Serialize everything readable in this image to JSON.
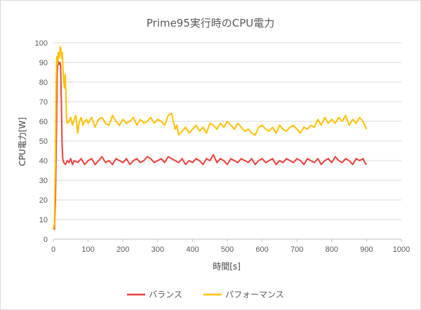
{
  "chart_data": {
    "type": "line",
    "title": "Prime95実行時のCPU電力",
    "xlabel": "時間[s]",
    "ylabel": "CPU電力[W]",
    "xlim": [
      0,
      1000
    ],
    "ylim": [
      0,
      100
    ],
    "x_ticks": [
      0,
      100,
      200,
      300,
      400,
      500,
      600,
      700,
      800,
      900,
      1000
    ],
    "y_ticks": [
      0,
      10,
      20,
      30,
      40,
      50,
      60,
      70,
      80,
      90,
      100
    ],
    "grid": true,
    "legend_position": "bottom",
    "series": [
      {
        "name": "バランス",
        "color": "#e8413c",
        "points": [
          [
            0,
            6
          ],
          [
            3,
            5
          ],
          [
            6,
            20
          ],
          [
            9,
            55
          ],
          [
            11,
            85
          ],
          [
            13,
            91
          ],
          [
            16,
            89
          ],
          [
            19,
            90
          ],
          [
            21,
            88
          ],
          [
            23,
            70
          ],
          [
            25,
            50
          ],
          [
            27,
            41
          ],
          [
            30,
            39
          ],
          [
            35,
            38
          ],
          [
            40,
            40
          ],
          [
            45,
            39
          ],
          [
            50,
            41
          ],
          [
            55,
            38
          ],
          [
            60,
            40
          ],
          [
            70,
            39
          ],
          [
            80,
            41
          ],
          [
            90,
            38
          ],
          [
            100,
            40
          ],
          [
            110,
            41
          ],
          [
            120,
            38
          ],
          [
            130,
            40
          ],
          [
            140,
            42
          ],
          [
            150,
            39
          ],
          [
            160,
            40
          ],
          [
            170,
            38
          ],
          [
            180,
            41
          ],
          [
            190,
            40
          ],
          [
            200,
            39
          ],
          [
            210,
            41
          ],
          [
            220,
            38
          ],
          [
            230,
            40
          ],
          [
            240,
            41
          ],
          [
            250,
            39
          ],
          [
            260,
            40
          ],
          [
            270,
            42
          ],
          [
            280,
            41
          ],
          [
            290,
            39
          ],
          [
            300,
            40
          ],
          [
            310,
            41
          ],
          [
            320,
            39
          ],
          [
            330,
            42
          ],
          [
            340,
            41
          ],
          [
            350,
            40
          ],
          [
            360,
            39
          ],
          [
            370,
            41
          ],
          [
            380,
            38
          ],
          [
            390,
            40
          ],
          [
            400,
            39
          ],
          [
            410,
            41
          ],
          [
            420,
            40
          ],
          [
            430,
            38
          ],
          [
            440,
            41
          ],
          [
            450,
            40
          ],
          [
            460,
            43
          ],
          [
            470,
            39
          ],
          [
            480,
            41
          ],
          [
            490,
            40
          ],
          [
            500,
            38
          ],
          [
            510,
            41
          ],
          [
            520,
            40
          ],
          [
            530,
            39
          ],
          [
            540,
            41
          ],
          [
            550,
            40
          ],
          [
            560,
            39
          ],
          [
            570,
            41
          ],
          [
            580,
            38
          ],
          [
            590,
            40
          ],
          [
            600,
            41
          ],
          [
            610,
            39
          ],
          [
            620,
            40
          ],
          [
            630,
            41
          ],
          [
            640,
            38
          ],
          [
            650,
            40
          ],
          [
            660,
            39
          ],
          [
            670,
            41
          ],
          [
            680,
            40
          ],
          [
            690,
            39
          ],
          [
            700,
            41
          ],
          [
            710,
            40
          ],
          [
            720,
            38
          ],
          [
            730,
            41
          ],
          [
            740,
            40
          ],
          [
            750,
            39
          ],
          [
            760,
            41
          ],
          [
            770,
            38
          ],
          [
            780,
            40
          ],
          [
            790,
            41
          ],
          [
            800,
            39
          ],
          [
            810,
            42
          ],
          [
            820,
            40
          ],
          [
            830,
            39
          ],
          [
            840,
            41
          ],
          [
            850,
            40
          ],
          [
            860,
            38
          ],
          [
            870,
            41
          ],
          [
            880,
            40
          ],
          [
            890,
            41
          ],
          [
            895,
            39
          ],
          [
            900,
            38
          ]
        ]
      },
      {
        "name": "パフォーマンス",
        "color": "#ffc000",
        "points": [
          [
            0,
            5
          ],
          [
            3,
            8
          ],
          [
            6,
            40
          ],
          [
            8,
            80
          ],
          [
            10,
            93
          ],
          [
            12,
            89
          ],
          [
            14,
            95
          ],
          [
            16,
            92
          ],
          [
            18,
            94
          ],
          [
            20,
            98
          ],
          [
            22,
            97
          ],
          [
            24,
            92
          ],
          [
            26,
            95
          ],
          [
            28,
            85
          ],
          [
            30,
            80
          ],
          [
            32,
            77
          ],
          [
            34,
            84
          ],
          [
            36,
            75
          ],
          [
            38,
            62
          ],
          [
            40,
            59
          ],
          [
            45,
            60
          ],
          [
            50,
            62
          ],
          [
            55,
            58
          ],
          [
            60,
            61
          ],
          [
            65,
            63
          ],
          [
            70,
            54
          ],
          [
            75,
            60
          ],
          [
            80,
            62
          ],
          [
            85,
            58
          ],
          [
            90,
            60
          ],
          [
            95,
            61
          ],
          [
            100,
            59
          ],
          [
            110,
            62
          ],
          [
            120,
            57
          ],
          [
            130,
            61
          ],
          [
            140,
            62
          ],
          [
            150,
            59
          ],
          [
            160,
            58
          ],
          [
            170,
            63
          ],
          [
            180,
            60
          ],
          [
            190,
            58
          ],
          [
            200,
            61
          ],
          [
            210,
            59
          ],
          [
            220,
            60
          ],
          [
            230,
            62
          ],
          [
            240,
            58
          ],
          [
            250,
            61
          ],
          [
            260,
            59
          ],
          [
            270,
            60
          ],
          [
            280,
            62
          ],
          [
            290,
            59
          ],
          [
            300,
            61
          ],
          [
            310,
            60
          ],
          [
            320,
            58
          ],
          [
            330,
            63
          ],
          [
            340,
            64
          ],
          [
            345,
            60
          ],
          [
            350,
            56
          ],
          [
            355,
            58
          ],
          [
            360,
            53
          ],
          [
            370,
            55
          ],
          [
            380,
            57
          ],
          [
            390,
            54
          ],
          [
            400,
            56
          ],
          [
            410,
            58
          ],
          [
            420,
            55
          ],
          [
            430,
            57
          ],
          [
            440,
            54
          ],
          [
            450,
            59
          ],
          [
            460,
            58
          ],
          [
            470,
            56
          ],
          [
            480,
            59
          ],
          [
            490,
            57
          ],
          [
            500,
            60
          ],
          [
            510,
            58
          ],
          [
            520,
            56
          ],
          [
            530,
            59
          ],
          [
            540,
            57
          ],
          [
            550,
            55
          ],
          [
            560,
            56
          ],
          [
            570,
            54
          ],
          [
            580,
            53
          ],
          [
            590,
            57
          ],
          [
            600,
            58
          ],
          [
            610,
            56
          ],
          [
            620,
            55
          ],
          [
            630,
            57
          ],
          [
            640,
            54
          ],
          [
            650,
            58
          ],
          [
            660,
            56
          ],
          [
            670,
            55
          ],
          [
            680,
            57
          ],
          [
            690,
            58
          ],
          [
            700,
            56
          ],
          [
            710,
            54
          ],
          [
            720,
            57
          ],
          [
            730,
            56
          ],
          [
            740,
            58
          ],
          [
            750,
            57
          ],
          [
            760,
            61
          ],
          [
            770,
            58
          ],
          [
            780,
            62
          ],
          [
            790,
            59
          ],
          [
            800,
            61
          ],
          [
            810,
            59
          ],
          [
            820,
            62
          ],
          [
            830,
            60
          ],
          [
            840,
            63
          ],
          [
            850,
            58
          ],
          [
            860,
            61
          ],
          [
            870,
            59
          ],
          [
            880,
            62
          ],
          [
            890,
            60
          ],
          [
            895,
            58
          ],
          [
            900,
            56
          ]
        ]
      }
    ]
  }
}
